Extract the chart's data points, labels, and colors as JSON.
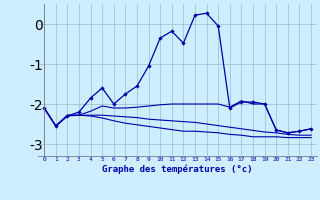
{
  "xlabel": "Graphe des températures (°c)",
  "x": [
    0,
    1,
    2,
    3,
    4,
    5,
    6,
    7,
    8,
    9,
    10,
    11,
    12,
    13,
    14,
    15,
    16,
    17,
    18,
    19,
    20,
    21,
    22,
    23
  ],
  "line1": [
    -2.1,
    -2.55,
    -2.3,
    -2.2,
    -1.85,
    -1.6,
    -2.0,
    -1.75,
    -1.55,
    -1.05,
    -0.35,
    -0.18,
    -0.48,
    0.22,
    0.27,
    -0.05,
    -2.1,
    -1.95,
    -1.95,
    -2.0,
    -2.65,
    -2.72,
    -2.68,
    -2.62
  ],
  "line2": [
    -2.1,
    -2.55,
    -2.3,
    -2.28,
    -2.18,
    -2.05,
    -2.1,
    -2.1,
    -2.08,
    -2.05,
    -2.02,
    -2.0,
    -2.0,
    -2.0,
    -2.0,
    -2.0,
    -2.08,
    -1.92,
    -2.0,
    -2.0,
    -2.65,
    -2.72,
    -2.68,
    -2.62
  ],
  "line3": [
    -2.1,
    -2.55,
    -2.28,
    -2.28,
    -2.28,
    -2.28,
    -2.3,
    -2.32,
    -2.34,
    -2.38,
    -2.4,
    -2.42,
    -2.44,
    -2.46,
    -2.5,
    -2.54,
    -2.58,
    -2.62,
    -2.66,
    -2.7,
    -2.72,
    -2.76,
    -2.78,
    -2.78
  ],
  "line4": [
    -2.1,
    -2.55,
    -2.28,
    -2.28,
    -2.3,
    -2.35,
    -2.42,
    -2.48,
    -2.52,
    -2.56,
    -2.6,
    -2.64,
    -2.68,
    -2.68,
    -2.7,
    -2.72,
    -2.76,
    -2.78,
    -2.82,
    -2.82,
    -2.82,
    -2.84,
    -2.84,
    -2.84
  ],
  "ylim": [
    -3.3,
    0.5
  ],
  "yticks": [
    0,
    -1,
    -2,
    -3
  ],
  "bg_color": "#cceeff",
  "line_color": "#0000aa",
  "grid_color": "#99bbcc",
  "spine_color": "#777799"
}
